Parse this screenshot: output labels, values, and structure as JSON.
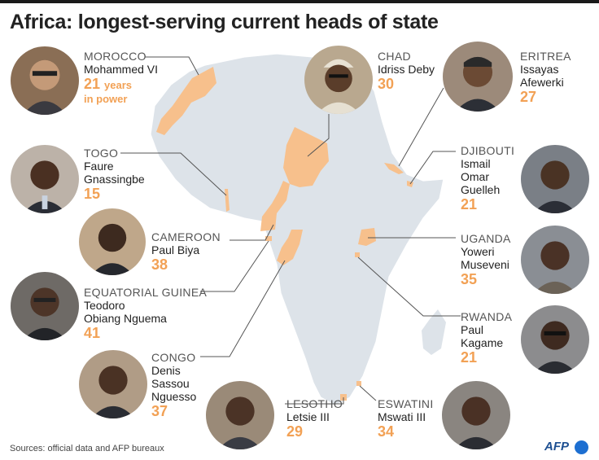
{
  "title": "Africa: longest-serving current heads of state",
  "source": "Sources: official data and AFP bureaux",
  "logo": "AFP",
  "colors": {
    "highlight": "#f7c08c",
    "land": "#dde3e9",
    "years": "#f2a155"
  },
  "leaders": [
    {
      "key": "morocco",
      "country": "MOROCCO",
      "name_lines": [
        "Mohammed VI"
      ],
      "years": "21",
      "unit": "years",
      "unit2": "in power"
    },
    {
      "key": "chad",
      "country": "CHAD",
      "name_lines": [
        "Idriss Deby"
      ],
      "years": "30"
    },
    {
      "key": "eritrea",
      "country": "ERITREA",
      "name_lines": [
        "Issayas",
        "Afewerki"
      ],
      "years": "27"
    },
    {
      "key": "togo",
      "country": "TOGO",
      "name_lines": [
        "Faure",
        "Gnassingbe"
      ],
      "years": "15"
    },
    {
      "key": "djibouti",
      "country": "DJIBOUTI",
      "name_lines": [
        "Ismail",
        "Omar",
        "Guelleh"
      ],
      "years": "21"
    },
    {
      "key": "cameroon",
      "country": "CAMEROON",
      "name_lines": [
        "Paul Biya"
      ],
      "years": "38"
    },
    {
      "key": "uganda",
      "country": "UGANDA",
      "name_lines": [
        "Yoweri",
        "Museveni"
      ],
      "years": "35"
    },
    {
      "key": "eqguinea",
      "country": "EQUATORIAL GUINEA",
      "name_lines": [
        "Teodoro",
        "Obiang Nguema"
      ],
      "years": "41"
    },
    {
      "key": "rwanda",
      "country": "RWANDA",
      "name_lines": [
        "Paul",
        "Kagame"
      ],
      "years": "21"
    },
    {
      "key": "congo",
      "country": "CONGO",
      "name_lines": [
        "Denis",
        "Sassou",
        "Nguesso"
      ],
      "years": "37"
    },
    {
      "key": "lesotho",
      "country": "LESOTHO",
      "name_lines": [
        "Letsie III"
      ],
      "years": "29"
    },
    {
      "key": "eswatini",
      "country": "ESWATINI",
      "name_lines": [
        "Mswati III"
      ],
      "years": "34"
    }
  ]
}
